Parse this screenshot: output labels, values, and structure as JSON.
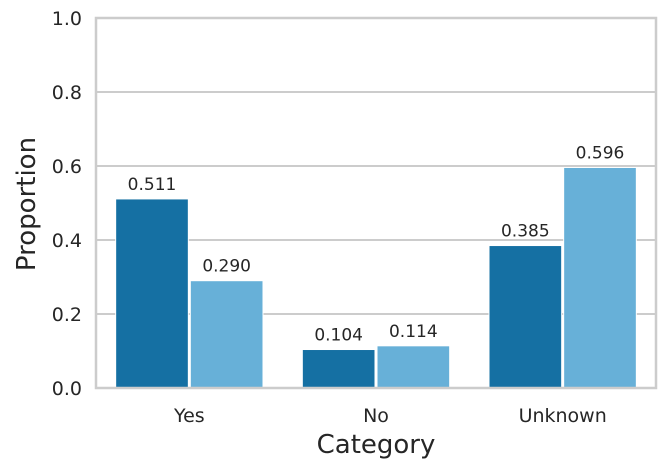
{
  "chart_data": {
    "type": "bar",
    "title": "",
    "xlabel": "Category",
    "ylabel": "Proportion",
    "categories": [
      "Yes",
      "No",
      "Unknown"
    ],
    "ylim": [
      0,
      1.0
    ],
    "yticks": [
      0.0,
      0.2,
      0.4,
      0.6,
      0.8,
      1.0
    ],
    "ytick_labels": [
      "0.0",
      "0.2",
      "0.4",
      "0.6",
      "0.8",
      "1.0"
    ],
    "grid": "horizontal",
    "legend": "none",
    "series": [
      {
        "values": [
          0.511,
          0.104,
          0.385
        ],
        "labels": [
          "0.511",
          "0.104",
          "0.385"
        ],
        "color": "#1570a3"
      },
      {
        "values": [
          0.29,
          0.114,
          0.596
        ],
        "labels": [
          "0.290",
          "0.114",
          "0.596"
        ],
        "color": "#67b0d8"
      }
    ]
  }
}
